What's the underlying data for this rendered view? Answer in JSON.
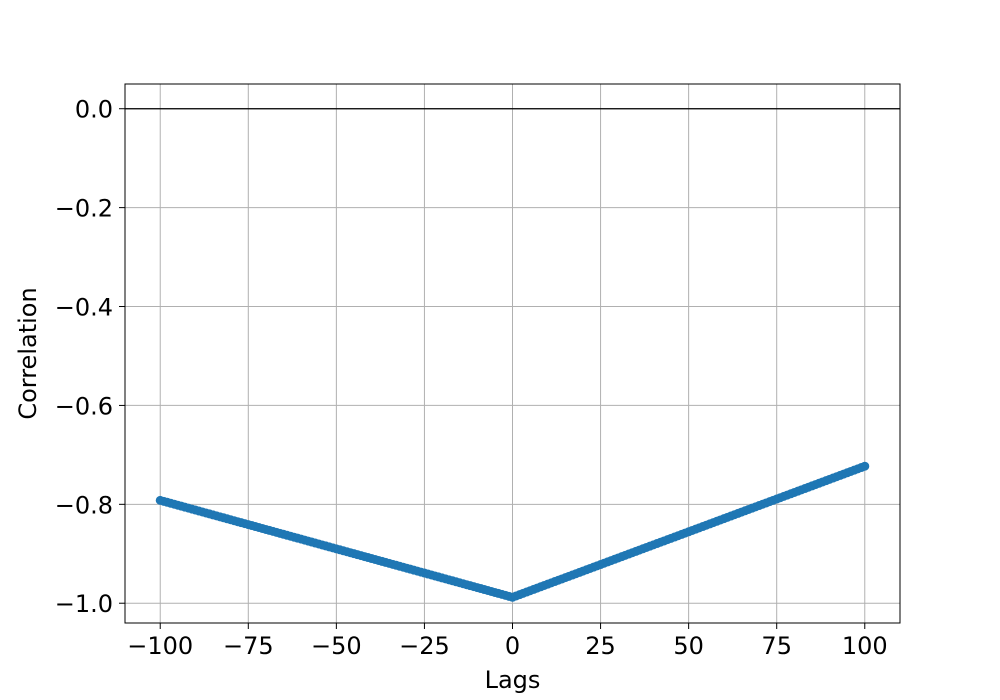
{
  "chart_data": {
    "type": "line",
    "title": "",
    "xlabel": "Lags",
    "ylabel": "Correlation",
    "xlim": [
      -110,
      110
    ],
    "ylim": [
      -1.04,
      0.05
    ],
    "grid": true,
    "legend": "none",
    "zero_line": 0.0,
    "x_ticks": [
      -100,
      -75,
      -50,
      -25,
      0,
      25,
      50,
      75,
      100
    ],
    "x_tick_labels": [
      "−100",
      "−75",
      "−50",
      "−25",
      "0",
      "25",
      "50",
      "75",
      "100"
    ],
    "y_ticks": [
      0.0,
      -0.2,
      -0.4,
      -0.6,
      -0.8,
      -1.0
    ],
    "y_tick_labels": [
      "0.0",
      "−0.2",
      "−0.4",
      "−0.6",
      "−0.8",
      "−1.0"
    ],
    "series": [
      {
        "color": "#1f77b4",
        "marker": "circle",
        "segments": [
          {
            "x_start": -100,
            "x_end": 0,
            "y_start": -0.792,
            "y_end": -0.988
          },
          {
            "x_start": 0,
            "x_end": 100,
            "y_start": -0.988,
            "y_end": -0.723
          }
        ],
        "x_step": 1
      }
    ],
    "colors": {
      "zero_line": "#000000",
      "grid": "#b0b0b0",
      "frame": "#000000"
    }
  }
}
